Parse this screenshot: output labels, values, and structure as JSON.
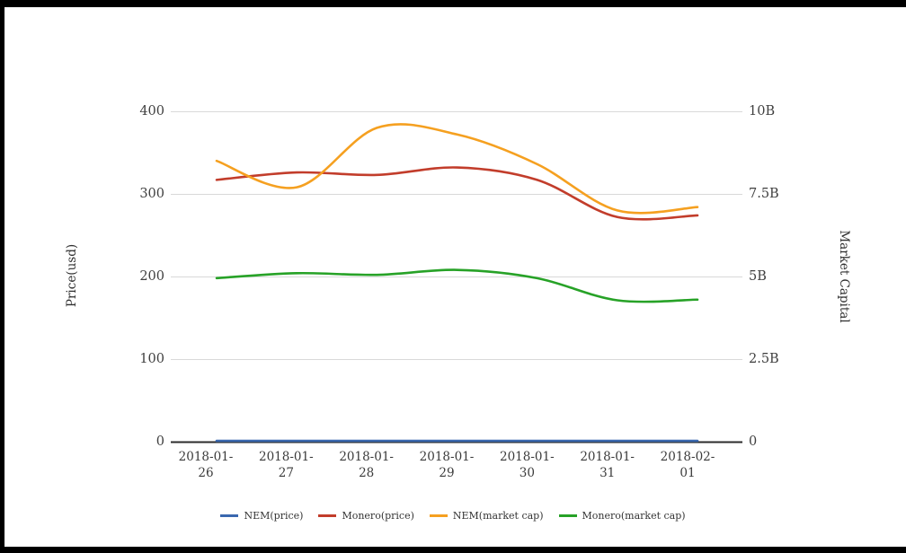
{
  "chart": {
    "left_axis": {
      "title": "Price(usd)",
      "ticks": [
        {
          "label": "0",
          "value": 0
        },
        {
          "label": "100",
          "value": 100
        },
        {
          "label": "200",
          "value": 200
        },
        {
          "label": "300",
          "value": 300
        },
        {
          "label": "400",
          "value": 400
        }
      ]
    },
    "right_axis": {
      "title": "Market Capital",
      "ticks": [
        {
          "label": "0",
          "value": 0
        },
        {
          "label": "2.5B",
          "value": 2.5
        },
        {
          "label": "5B",
          "value": 5
        },
        {
          "label": "7.5B",
          "value": 7.5
        },
        {
          "label": "10B",
          "value": 10
        }
      ]
    }
  },
  "chart_data": {
    "type": "line",
    "curve": "smooth",
    "x": [
      "2018-01-26",
      "2018-01-27",
      "2018-01-28",
      "2018-01-29",
      "2018-01-30",
      "2018-01-31",
      "2018-02-01"
    ],
    "series": [
      {
        "name": "NEM(price)",
        "axis": "price",
        "unit": "USD",
        "color": "#3a68af",
        "values": [
          1,
          1,
          1,
          1,
          1,
          1,
          1
        ]
      },
      {
        "name": "Monero(price)",
        "axis": "price",
        "unit": "USD",
        "color": "#c23d2b",
        "values": [
          317,
          326,
          323,
          332,
          317,
          272,
          274
        ]
      },
      {
        "name": "NEM(market cap)",
        "axis": "market_cap",
        "unit": "USD billions",
        "color": "#f5a020",
        "values": [
          8.5,
          7.7,
          9.5,
          9.3,
          8.4,
          7.0,
          7.1
        ]
      },
      {
        "name": "Monero(market cap)",
        "axis": "market_cap",
        "unit": "USD billions",
        "color": "#27a227",
        "values": [
          4.95,
          5.1,
          5.05,
          5.2,
          4.95,
          4.28,
          4.3
        ]
      }
    ],
    "ylabel_left": "Price(usd)",
    "ylabel_right": "Market Capital",
    "ylim_left": [
      0,
      400
    ],
    "ylim_right_billions": [
      0,
      10
    ],
    "grid": true,
    "legend_position": "bottom"
  },
  "colors": {
    "gridline": "#d9d9d9",
    "axis_line": "#2b2b2b",
    "tick_text": "#3f3f3f",
    "background": "#ffffff",
    "frame": "#000000"
  }
}
